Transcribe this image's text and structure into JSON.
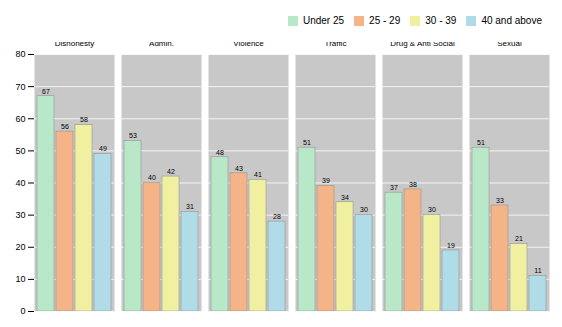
{
  "chart_data": {
    "type": "bar",
    "categories": [
      "Dishonesty",
      "Admin.",
      "Violence",
      "Traffic",
      "Drug & Anti Social",
      "Sexual"
    ],
    "series": [
      {
        "name": "Under 25",
        "color": "#b8e8c8",
        "values": [
          67,
          53,
          48,
          51,
          37,
          51
        ]
      },
      {
        "name": "25 - 29",
        "color": "#f4b488",
        "values": [
          56,
          40,
          43,
          39,
          38,
          33
        ]
      },
      {
        "name": "30 - 39",
        "color": "#f0f0a0",
        "values": [
          58,
          42,
          41,
          34,
          30,
          21
        ]
      },
      {
        "name": "40 and above",
        "color": "#b0dce8",
        "values": [
          49,
          31,
          28,
          30,
          19,
          11
        ]
      }
    ],
    "ylim": [
      0,
      80
    ],
    "yticks": [
      0,
      10,
      20,
      30,
      40,
      50,
      60,
      70,
      80
    ],
    "grid": true,
    "legend": "upper right",
    "data_labels": true
  }
}
